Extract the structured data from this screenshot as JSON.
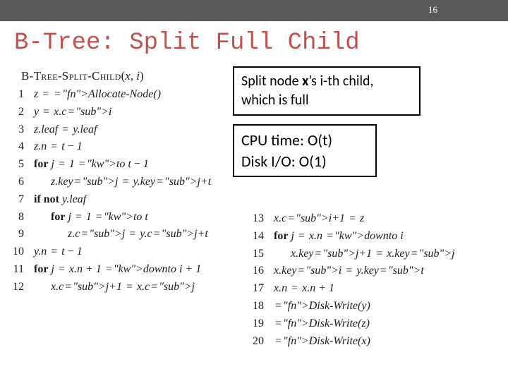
{
  "page_number": "16",
  "title": "B-Tree: Split Full Child",
  "header": {
    "function": "B-Tree-Split-Child",
    "args_open": "(",
    "arg1": "x",
    "args_sep": ", ",
    "arg2": "i",
    "args_close": ")"
  },
  "callout1": {
    "line1_pre": "Split node ",
    "line1_em": "x",
    "line1_post": "’s i-th child,",
    "line2": "which is full"
  },
  "callout2": {
    "line1": "CPU time: O(t)",
    "line2": "Disk I/O: O(1)"
  },
  "left_lines": [
    {
      "n": "1",
      "indent": 0,
      "kw": "",
      "body": "z = <fn>Allocate-Node</fn>()"
    },
    {
      "n": "2",
      "indent": 0,
      "kw": "",
      "body": "y = x.c<sub>i</sub>"
    },
    {
      "n": "3",
      "indent": 0,
      "kw": "",
      "body": "z.leaf = y.leaf"
    },
    {
      "n": "4",
      "indent": 0,
      "kw": "",
      "body": "z.n = t − 1"
    },
    {
      "n": "5",
      "indent": 0,
      "kw": "for",
      "body": " j = 1 <kw>to</kw> t − 1"
    },
    {
      "n": "6",
      "indent": 1,
      "kw": "",
      "body": "z.key<sub>j</sub> = y.key<sub>j+t</sub>"
    },
    {
      "n": "7",
      "indent": 0,
      "kw": "if not",
      "body": " y.leaf"
    },
    {
      "n": "8",
      "indent": 1,
      "kw": "for",
      "body": " j = 1 <kw>to</kw> t"
    },
    {
      "n": "9",
      "indent": 2,
      "kw": "",
      "body": "z.c<sub>j</sub> = y.c<sub>j+t</sub>"
    },
    {
      "n": "10",
      "indent": 0,
      "kw": "",
      "body": "y.n = t − 1"
    },
    {
      "n": "11",
      "indent": 0,
      "kw": "for",
      "body": " j = x.n + 1 <kw>downto</kw> i + 1"
    },
    {
      "n": "12",
      "indent": 1,
      "kw": "",
      "body": "x.c<sub>j+1</sub> = x.c<sub>j</sub>"
    }
  ],
  "right_lines": [
    {
      "n": "13",
      "indent": 0,
      "kw": "",
      "body": "x.c<sub>i+1</sub> = z"
    },
    {
      "n": "14",
      "indent": 0,
      "kw": "for",
      "body": " j = x.n <kw>downto</kw> i"
    },
    {
      "n": "15",
      "indent": 1,
      "kw": "",
      "body": "x.key<sub>j+1</sub> = x.key<sub>j</sub>"
    },
    {
      "n": "16",
      "indent": 0,
      "kw": "",
      "body": "x.key<sub>i</sub> = y.key<sub>t</sub>"
    },
    {
      "n": "17",
      "indent": 0,
      "kw": "",
      "body": "x.n = x.n + 1"
    },
    {
      "n": "18",
      "indent": 0,
      "kw": "",
      "body": "<fn>Disk-Write</fn>(y)"
    },
    {
      "n": "19",
      "indent": 0,
      "kw": "",
      "body": "<fn>Disk-Write</fn>(z)"
    },
    {
      "n": "20",
      "indent": 0,
      "kw": "",
      "body": "<fn>Disk-Write</fn>(x)"
    }
  ],
  "style": {
    "topbar_bg": "#595959",
    "title_color": "#c0504d",
    "title_font": "Courier New",
    "body_font": "Times New Roman",
    "callout_font": "Calibri",
    "text_color": "#1a1a1a",
    "box_border": "#000000",
    "background": "#ffffff"
  }
}
